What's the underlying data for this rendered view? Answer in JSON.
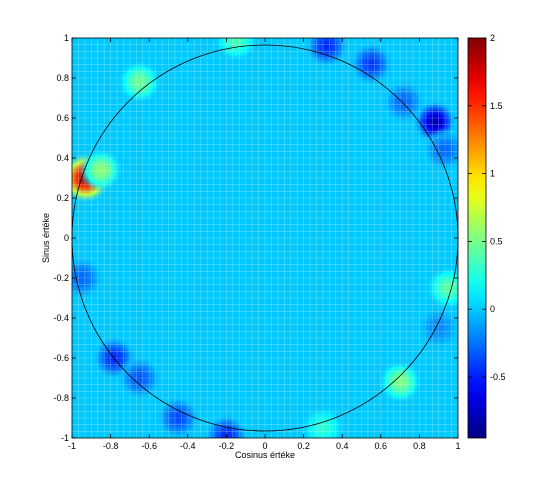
{
  "chart_data": {
    "type": "heatmap",
    "title": "",
    "xlabel": "Cosinus értéke",
    "ylabel": "Sinus értéke",
    "xlim": [
      -1,
      1
    ],
    "ylim": [
      -1,
      1
    ],
    "x_ticks": [
      -1,
      -0.8,
      -0.6,
      -0.4,
      -0.2,
      0,
      0.2,
      0.4,
      0.6,
      0.8,
      1
    ],
    "y_ticks": [
      -1,
      -0.8,
      -0.6,
      -0.4,
      -0.2,
      0,
      0.2,
      0.4,
      0.6,
      0.8,
      1
    ],
    "colorbar": {
      "range": [
        -0.95,
        2
      ],
      "ticks": [
        -0.5,
        0,
        0.5,
        1,
        1.5,
        2
      ],
      "colormap": "jet"
    },
    "background_value": 0,
    "grid": true,
    "unit_circle": true,
    "features": [
      {
        "x": -0.93,
        "y": 0.3,
        "value": 2.0
      },
      {
        "x": -0.85,
        "y": 0.34,
        "value": 0.6
      },
      {
        "x": 0.88,
        "y": 0.58,
        "value": -0.85
      },
      {
        "x": 0.93,
        "y": 0.44,
        "value": -0.3
      },
      {
        "x": 0.55,
        "y": 0.87,
        "value": -0.45
      },
      {
        "x": 0.32,
        "y": 0.96,
        "value": -0.5
      },
      {
        "x": 0.72,
        "y": 0.68,
        "value": -0.3
      },
      {
        "x": -0.65,
        "y": 0.78,
        "value": 0.5
      },
      {
        "x": -0.15,
        "y": 0.99,
        "value": 0.4
      },
      {
        "x": 0.95,
        "y": -0.25,
        "value": 0.45
      },
      {
        "x": -0.95,
        "y": -0.2,
        "value": -0.3
      },
      {
        "x": -0.78,
        "y": -0.6,
        "value": -0.5
      },
      {
        "x": -0.65,
        "y": -0.7,
        "value": -0.35
      },
      {
        "x": -0.45,
        "y": -0.9,
        "value": -0.4
      },
      {
        "x": -0.2,
        "y": -0.99,
        "value": -0.5
      },
      {
        "x": 0.3,
        "y": -0.95,
        "value": 0.3
      },
      {
        "x": 0.7,
        "y": -0.72,
        "value": 0.55
      },
      {
        "x": 0.9,
        "y": -0.45,
        "value": -0.2
      }
    ]
  }
}
